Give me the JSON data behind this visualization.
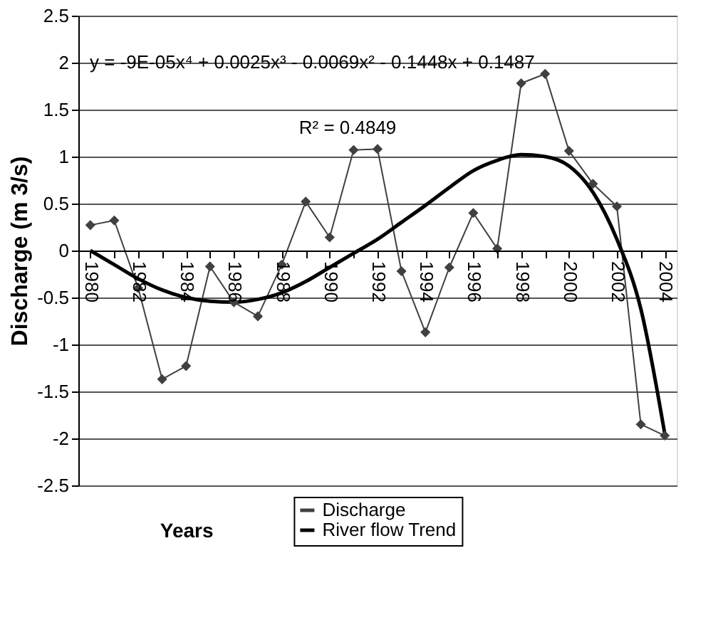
{
  "chart_data": {
    "type": "line",
    "xlabel": "Years",
    "ylabel": "Discharge (m 3/s)",
    "categories": [
      "1980",
      null,
      "1982",
      null,
      "1984",
      null,
      "1986",
      null,
      "1988",
      null,
      "1990",
      null,
      "1992",
      null,
      "1994",
      null,
      "1996",
      null,
      "1998",
      null,
      "2000",
      null,
      "2002",
      null,
      "2004"
    ],
    "series": [
      {
        "name": "Discharge",
        "color": "#404040",
        "marker": "diamond",
        "values": [
          0.27,
          0.32,
          -0.4,
          -1.37,
          -1.23,
          -0.17,
          -0.55,
          -0.7,
          -0.15,
          0.52,
          0.14,
          1.07,
          1.08,
          -0.22,
          -0.87,
          -0.18,
          0.4,
          0.02,
          1.78,
          1.88,
          1.06,
          0.71,
          0.47,
          -1.85,
          -1.97
        ]
      },
      {
        "name": "River flow Trend",
        "color": "#000000",
        "marker": "none",
        "values": [
          0,
          -0.15,
          -0.3,
          -0.42,
          -0.5,
          -0.54,
          -0.55,
          -0.52,
          -0.45,
          -0.33,
          -0.18,
          -0.03,
          0.12,
          0.3,
          0.48,
          0.67,
          0.85,
          0.96,
          1.02,
          1.0,
          0.9,
          0.62,
          0.12,
          -0.62,
          -1.95
        ]
      }
    ],
    "ylim": [
      -2.5,
      2.5
    ],
    "yticks": [
      -2.5,
      -2,
      -1.5,
      -1,
      -0.5,
      0,
      0.5,
      1,
      1.5,
      2,
      2.5
    ],
    "grid": "y",
    "legend": "bottom",
    "annotations": [
      "y = -9E-05x⁴ + 0.0025x³ - 0.0069x² - 0.1448x + 0.1487",
      "R² = 0.4849"
    ]
  }
}
